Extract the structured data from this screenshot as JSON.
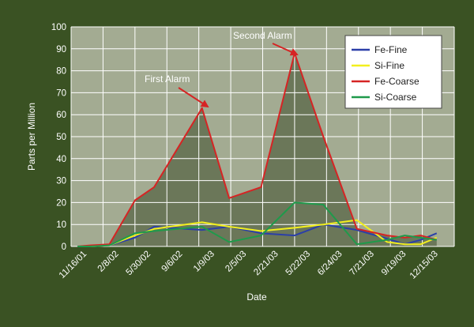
{
  "chart_data": {
    "type": "line",
    "title": "",
    "xlabel": "Date",
    "ylabel": "Parts per Million",
    "ylim": [
      0,
      100
    ],
    "yticks": [
      0,
      10,
      20,
      30,
      40,
      50,
      60,
      70,
      80,
      90,
      100
    ],
    "categories": [
      "11/16/01",
      "2/8/02",
      "5/30/02",
      "9/6/02",
      "1/9/03",
      "2/5/03",
      "2/21/03",
      "5/22/03",
      "6/24/03",
      "7/21/03",
      "9/19/03",
      "12/15/03"
    ],
    "x": [
      "11/16/01",
      "12/28/01",
      "2/8/02",
      "5/30/02",
      "7/18/02",
      "9/6/02",
      "1/9/03",
      "2/5/03",
      "2/21/03",
      "5/22/03",
      "6/24/03",
      "7/21/03",
      "9/19/03",
      "11/1/03",
      "12/15/03"
    ],
    "series": [
      {
        "name": "Fe-Fine",
        "color": "#2b3fa8",
        "values": [
          0,
          0,
          0.5,
          4,
          9,
          7.5,
          9,
          6,
          5,
          10,
          7.5,
          3.5,
          1,
          3,
          6
        ]
      },
      {
        "name": "Si-Fine",
        "color": "#f2ef1e",
        "values": [
          0,
          0,
          0.5,
          5,
          8,
          11,
          9,
          7,
          8.5,
          10,
          12,
          2,
          1,
          1,
          4
        ]
      },
      {
        "name": "Fe-Coarse",
        "color": "#d62424",
        "values": [
          0,
          0.5,
          1,
          21,
          27,
          63,
          22,
          27,
          88,
          50,
          8,
          5,
          4,
          5,
          3
        ]
      },
      {
        "name": "Si-Coarse",
        "color": "#1f9a4b",
        "values": [
          0,
          0,
          0.5,
          6,
          7,
          9,
          2,
          5,
          20,
          19,
          1,
          3,
          5,
          4,
          3
        ]
      }
    ],
    "annotations": [
      {
        "text": "First Alarm"
      },
      {
        "text": "Second Alarm"
      }
    ],
    "legend_position": "top-right",
    "grid": true
  },
  "colors": {
    "background": "#3a5223",
    "plot_area": "#a3ab92",
    "grid": "#ffffff",
    "shade": "#4d5a3b",
    "arrow": "#d62424"
  }
}
